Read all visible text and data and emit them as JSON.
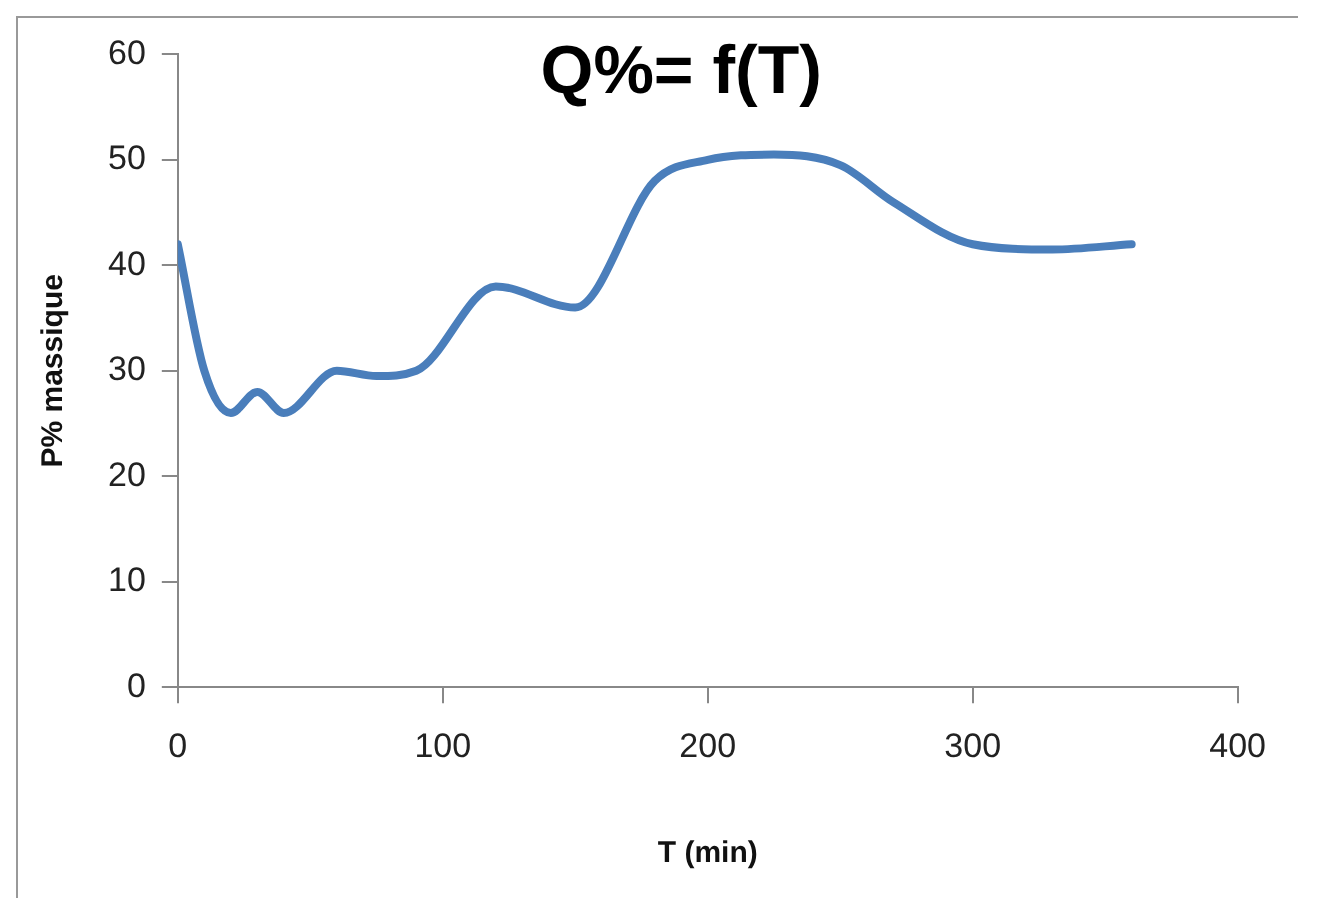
{
  "chart_data": {
    "type": "line",
    "title": "Q%= f(T)",
    "xlabel": "T (min)",
    "ylabel": "P% massique",
    "x": [
      0,
      10,
      20,
      30,
      40,
      60,
      75,
      90,
      120,
      150,
      180,
      200,
      225,
      250,
      270,
      300,
      330,
      360
    ],
    "series": [
      {
        "color": "#4a7ebb",
        "values": [
          42,
          30,
          26,
          28,
          26,
          30,
          29.5,
          30,
          38,
          36,
          48,
          50,
          50.5,
          49.5,
          46,
          42,
          41.5,
          42
        ]
      }
    ],
    "xlim": [
      0,
      400
    ],
    "xticks": [
      0,
      100,
      200,
      300,
      400
    ],
    "ylim": [
      0,
      60
    ],
    "yticks": [
      0,
      10,
      20,
      30,
      40,
      50,
      60
    ],
    "grid": false,
    "legend": false,
    "marker": "none",
    "line_style": "solid"
  }
}
